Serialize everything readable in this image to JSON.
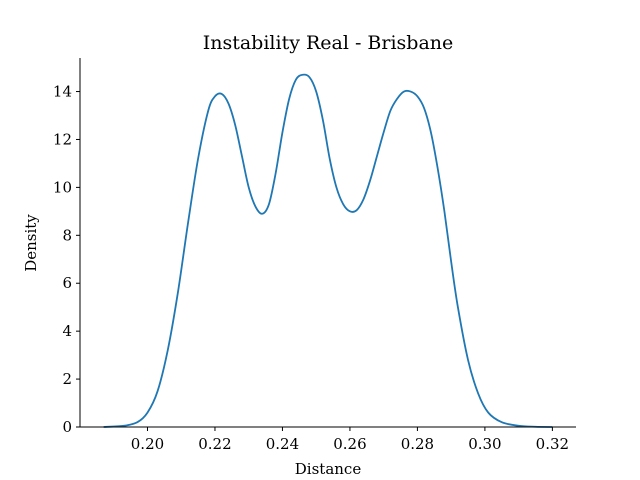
{
  "chart_data": {
    "type": "line",
    "title": "Instability Real - Brisbane",
    "xlabel": "Distance",
    "ylabel": "Density",
    "xlim": [
      0.18,
      0.327
    ],
    "ylim": [
      0,
      15.4
    ],
    "xticks": [
      0.2,
      0.22,
      0.24,
      0.26,
      0.28,
      0.3,
      0.32
    ],
    "xtick_labels": [
      "0.20",
      "0.22",
      "0.24",
      "0.26",
      "0.28",
      "0.30",
      "0.32"
    ],
    "yticks": [
      0,
      2,
      4,
      6,
      8,
      10,
      12,
      14
    ],
    "ytick_labels": [
      "0",
      "2",
      "4",
      "6",
      "8",
      "10",
      "12",
      "14"
    ],
    "grid": false,
    "color": "#1f77b4",
    "series": [
      {
        "x": [
          0.187,
          0.193,
          0.197,
          0.2,
          0.203,
          0.206,
          0.209,
          0.212,
          0.215,
          0.218,
          0.22,
          0.222,
          0.224,
          0.226,
          0.228,
          0.23,
          0.232,
          0.234,
          0.236,
          0.238,
          0.24,
          0.242,
          0.244,
          0.246,
          0.248,
          0.25,
          0.252,
          0.254,
          0.256,
          0.258,
          0.26,
          0.262,
          0.264,
          0.266,
          0.268,
          0.27,
          0.272,
          0.274,
          0.276,
          0.278,
          0.28,
          0.282,
          0.284,
          0.286,
          0.288,
          0.29,
          0.292,
          0.295,
          0.298,
          0.301,
          0.305,
          0.31,
          0.315,
          0.32
        ],
        "y": [
          0.0,
          0.05,
          0.2,
          0.6,
          1.5,
          3.2,
          5.6,
          8.5,
          11.2,
          13.2,
          13.8,
          13.9,
          13.5,
          12.6,
          11.3,
          10.0,
          9.2,
          8.9,
          9.3,
          10.6,
          12.3,
          13.7,
          14.5,
          14.7,
          14.6,
          14.0,
          12.8,
          11.2,
          10.0,
          9.3,
          9.0,
          9.05,
          9.5,
          10.3,
          11.3,
          12.3,
          13.2,
          13.7,
          14.0,
          14.0,
          13.8,
          13.3,
          12.3,
          10.8,
          9.0,
          6.9,
          5.0,
          2.8,
          1.4,
          0.6,
          0.2,
          0.05,
          0.01,
          0.0
        ]
      }
    ]
  }
}
